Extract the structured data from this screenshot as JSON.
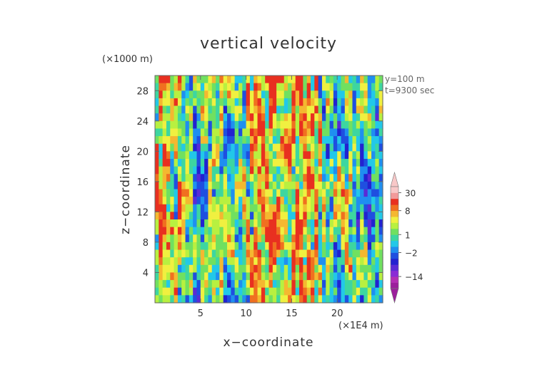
{
  "chart_data": {
    "type": "heatmap",
    "title": "vertical velocity",
    "xlabel": "x−coordinate",
    "ylabel": "z−coordinate",
    "x_unit": "(×1E4 m)",
    "y_unit": "(×1000 m)",
    "annotations": [
      "y=100 m",
      "t=9300 sec"
    ],
    "x_ticks": [
      5,
      10,
      15,
      20
    ],
    "y_ticks": [
      4,
      8,
      12,
      16,
      20,
      24,
      28
    ],
    "xlim": [
      0,
      25
    ],
    "ylim": [
      0,
      30
    ],
    "colorbar": {
      "tick_labels": [
        "30",
        "8",
        "1",
        "−2",
        "−14"
      ],
      "tick_values": [
        30,
        8,
        1,
        -2,
        -14
      ],
      "levels": [
        -30,
        -20,
        -14,
        -10,
        -6,
        -4,
        -2,
        -1,
        0,
        1,
        2,
        3,
        5,
        8,
        12,
        20,
        30
      ],
      "colors": [
        "#9c1f9c",
        "#b32fb3",
        "#8a2bd6",
        "#5a2bd6",
        "#2222d0",
        "#1f4fe0",
        "#1f8ff0",
        "#22c8e8",
        "#3dd6a0",
        "#70e060",
        "#b8f040",
        "#f0f040",
        "#f4b830",
        "#f07020",
        "#e83020",
        "#f29a9a",
        "#f8c8c8"
      ],
      "extend": "both"
    }
  }
}
